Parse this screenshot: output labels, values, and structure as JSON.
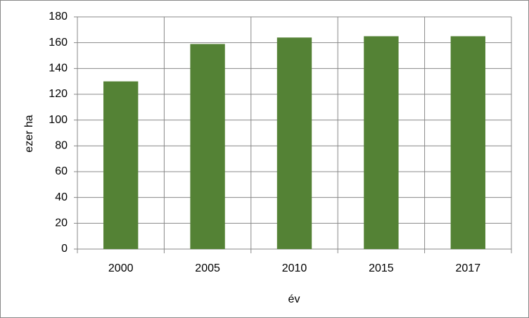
{
  "chart_data": {
    "type": "bar",
    "categories": [
      "2000",
      "2005",
      "2010",
      "2015",
      "2017"
    ],
    "values": [
      130,
      159,
      164,
      165,
      165
    ],
    "color": "#548235",
    "ylim": [
      0,
      180
    ],
    "yticks": [
      0,
      20,
      40,
      60,
      80,
      100,
      120,
      140,
      160,
      180
    ],
    "grid": true,
    "xlabel": "év",
    "ylabel": "ezer ha"
  }
}
